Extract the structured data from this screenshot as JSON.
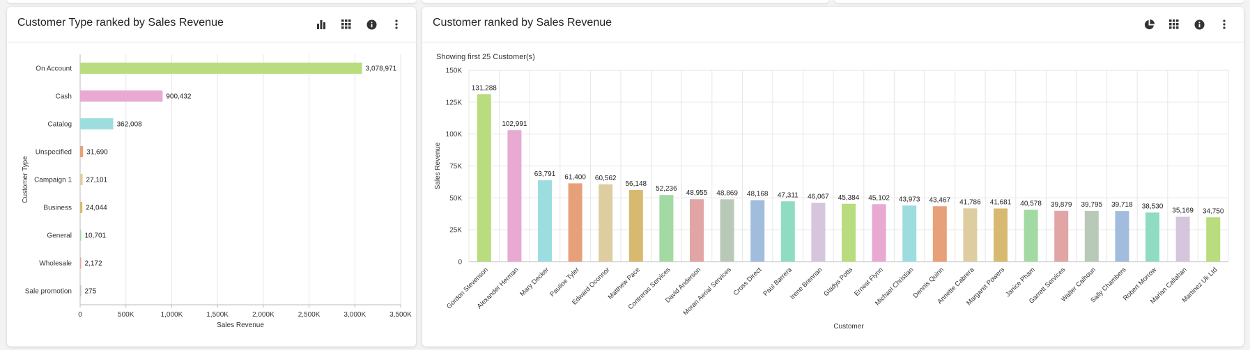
{
  "left_card": {
    "title": "Customer Type ranked by Sales Revenue",
    "icons": [
      "bar-chart-icon",
      "grid-icon",
      "info-icon",
      "more-vertical-icon"
    ]
  },
  "right_card": {
    "title": "Customer ranked by Sales Revenue",
    "subtitle": "Showing first 25 Customer(s)",
    "icons": [
      "pie-chart-icon",
      "grid-icon",
      "info-icon",
      "more-vertical-icon"
    ]
  },
  "palette": [
    "#b8dc7e",
    "#e8a9d3",
    "#9ddde0",
    "#e7a07a",
    "#decda0",
    "#d7ba6f",
    "#a3d9a3",
    "#e2a5a5",
    "#b9c9b7",
    "#a2bcdd",
    "#8fdcc2",
    "#d5c5dd"
  ],
  "chart_data": [
    {
      "type": "bar",
      "orientation": "horizontal",
      "categories": [
        "On Account",
        "Cash",
        "Catalog",
        "Unspecified",
        "Campaign 1",
        "Business",
        "General",
        "Wholesale",
        "Sale promotion"
      ],
      "values": [
        3078971,
        900432,
        362008,
        31690,
        27101,
        24044,
        10701,
        2172,
        275
      ],
      "data_labels": [
        "3,078,971",
        "900,432",
        "362,008",
        "31,690",
        "27,101",
        "24,044",
        "10,701",
        "2,172",
        "275"
      ],
      "xlabel": "Sales Revenue",
      "ylabel": "Customer Type",
      "xlim": [
        0,
        3500000
      ],
      "ticks": [
        0,
        500000,
        1000000,
        1500000,
        2000000,
        2500000,
        3000000,
        3500000
      ],
      "tick_labels": [
        "0",
        "500K",
        "1,000K",
        "1,500K",
        "2,000K",
        "2,500K",
        "3,000K",
        "3,500K"
      ],
      "grid": true
    },
    {
      "type": "bar",
      "orientation": "vertical",
      "categories": [
        "Gordon Stevenson",
        "Alexander Herman",
        "Mary Decker",
        "Pauline Tyler",
        "Edward Oconnor",
        "Matthew Pace",
        "Contreras Services",
        "David Anderson",
        "Moran Aerial Services",
        "Cross Direct",
        "Paul Barrera",
        "Irene Brennan",
        "Gladys Potts",
        "Ernest Flynn",
        "Michael Christian",
        "Dennis Quinn",
        "Annette Cabrera",
        "Margaret Powers",
        "Janice Pham",
        "Garrett Services",
        "Walter Calhoun",
        "Sally Chambers",
        "Robert Morrow",
        "Marian Callahan",
        "Martinez Uk Ltd"
      ],
      "values": [
        131288,
        102991,
        63791,
        61400,
        60562,
        56148,
        52236,
        48955,
        48869,
        48168,
        47311,
        46067,
        45384,
        45102,
        43973,
        43467,
        41786,
        41681,
        40578,
        39879,
        39795,
        39718,
        38530,
        35169,
        34750
      ],
      "data_labels": [
        "131,288",
        "102,991",
        "63,791",
        "61,400",
        "60,562",
        "56,148",
        "52,236",
        "48,955",
        "48,869",
        "48,168",
        "47,311",
        "46,067",
        "45,384",
        "45,102",
        "43,973",
        "43,467",
        "41,786",
        "41,681",
        "40,578",
        "39,879",
        "39,795",
        "39,718",
        "38,530",
        "35,169",
        "34,750"
      ],
      "xlabel": "Customer",
      "ylabel": "Sales Revenue",
      "ylim": [
        0,
        150000
      ],
      "ticks": [
        0,
        25000,
        50000,
        75000,
        100000,
        125000,
        150000
      ],
      "tick_labels": [
        "0",
        "25K",
        "50K",
        "75K",
        "100K",
        "125K",
        "150K"
      ],
      "grid": true
    }
  ]
}
